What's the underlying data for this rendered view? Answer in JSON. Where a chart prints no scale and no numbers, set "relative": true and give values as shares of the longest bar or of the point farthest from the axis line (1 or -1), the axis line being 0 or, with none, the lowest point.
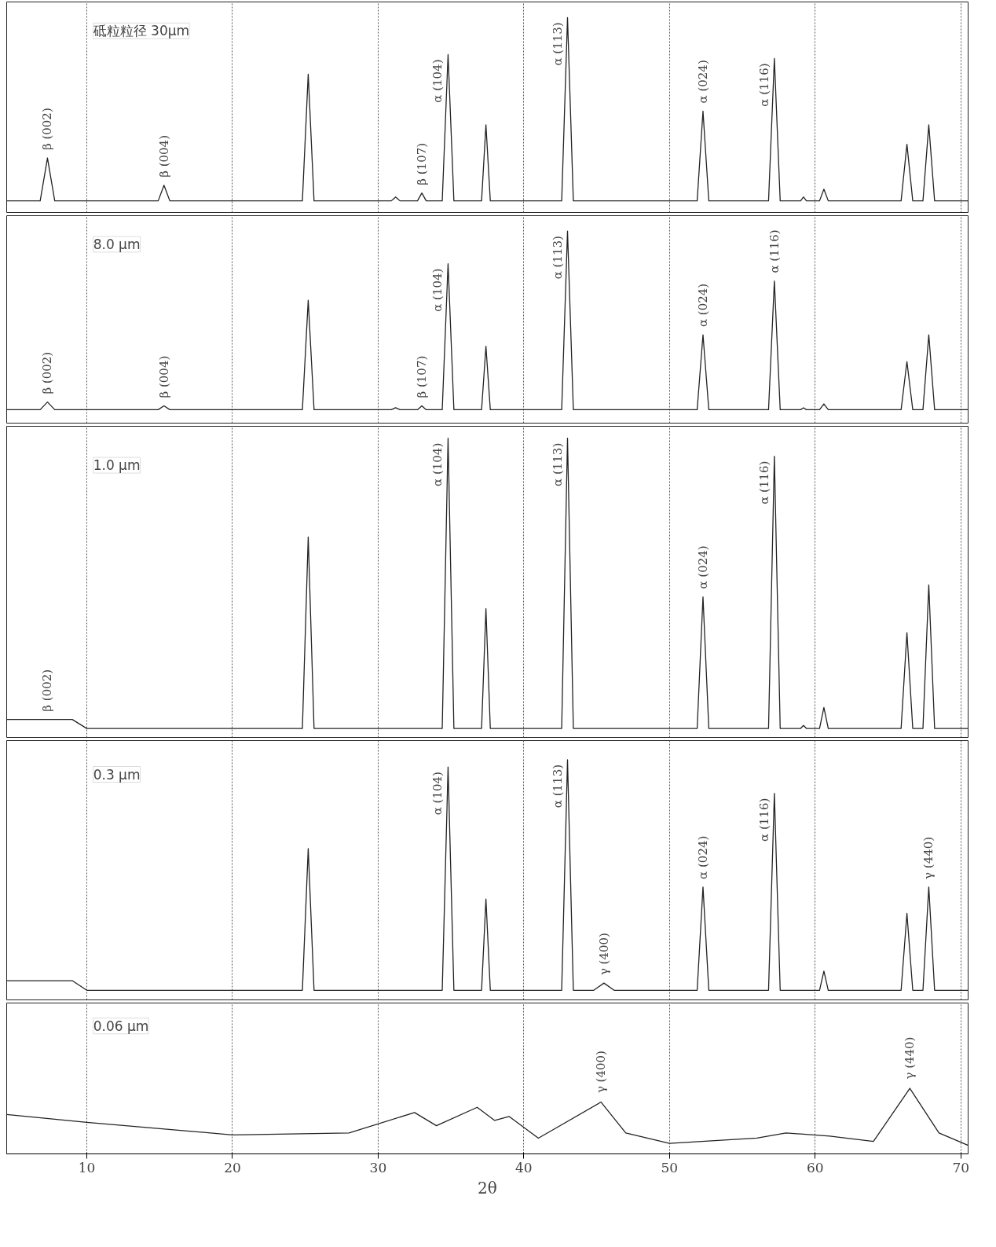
{
  "chart_data": [
    {
      "type": "line",
      "title": "砥粒粒径 30μm",
      "relative": true,
      "xlim": [
        4.5,
        70.5
      ],
      "xticks": [
        10,
        20,
        30,
        40,
        50,
        60,
        70
      ],
      "tick_labels": false,
      "grid": "x",
      "x": [
        4.5,
        6.8,
        7.3,
        7.8,
        14.9,
        15.3,
        15.7,
        24.8,
        25.2,
        25.6,
        30.9,
        31.2,
        31.5,
        32.7,
        33.0,
        33.3,
        34.4,
        34.8,
        35.2,
        37.1,
        37.4,
        37.7,
        42.6,
        43.0,
        43.4,
        51.9,
        52.3,
        52.7,
        56.8,
        57.2,
        57.6,
        59.0,
        59.2,
        59.4,
        60.3,
        60.6,
        60.9,
        65.9,
        66.3,
        66.7,
        67.4,
        67.8,
        68.2,
        70.5
      ],
      "series": [
        {
          "color": "#222222",
          "values": [
            0.06,
            0.06,
            0.28,
            0.06,
            0.06,
            0.14,
            0.06,
            0.06,
            0.71,
            0.06,
            0.06,
            0.08,
            0.06,
            0.06,
            0.1,
            0.06,
            0.06,
            0.81,
            0.06,
            0.06,
            0.45,
            0.06,
            0.06,
            1,
            0.06,
            0.06,
            0.52,
            0.06,
            0.06,
            0.79,
            0.06,
            0.06,
            0.08,
            0.06,
            0.06,
            0.12,
            0.06,
            0.06,
            0.35,
            0.06,
            0.06,
            0.45,
            0.06,
            0.06
          ]
        }
      ],
      "annotations": [
        {
          "text": "β (002)",
          "x": 7.3,
          "y": 0.28
        },
        {
          "text": "β (004)",
          "x": 15.3,
          "y": 0.14
        },
        {
          "text": "β (107)",
          "x": 33.0,
          "y": 0.1
        },
        {
          "text": "α (104)",
          "x": 34.8,
          "y": 0.81
        },
        {
          "text": "α (113)",
          "x": 43.0,
          "y": 1
        },
        {
          "text": "α (024)",
          "x": 52.3,
          "y": 0.52
        },
        {
          "text": "α (116)",
          "x": 57.2,
          "y": 0.79
        }
      ]
    },
    {
      "type": "line",
      "title": "8.0 μm",
      "relative": true,
      "xlim": [
        4.5,
        70.5
      ],
      "xticks": [
        10,
        20,
        30,
        40,
        50,
        60,
        70
      ],
      "tick_labels": false,
      "grid": "x",
      "x": [
        4.5,
        6.8,
        7.3,
        7.8,
        14.9,
        15.3,
        15.7,
        24.8,
        25.2,
        25.6,
        30.9,
        31.2,
        31.5,
        32.7,
        33.0,
        33.3,
        34.4,
        34.8,
        35.2,
        37.1,
        37.4,
        37.7,
        42.6,
        43.0,
        43.4,
        51.9,
        52.3,
        52.7,
        56.8,
        57.2,
        57.6,
        59.0,
        59.2,
        59.4,
        60.3,
        60.6,
        60.9,
        65.9,
        66.3,
        66.7,
        67.4,
        67.8,
        68.2,
        70.5
      ],
      "series": [
        {
          "color": "#222222",
          "values": [
            0.07,
            0.07,
            0.11,
            0.07,
            0.07,
            0.09,
            0.07,
            0.07,
            0.64,
            0.07,
            0.07,
            0.08,
            0.07,
            0.07,
            0.09,
            0.07,
            0.07,
            0.83,
            0.07,
            0.07,
            0.4,
            0.07,
            0.07,
            1,
            0.07,
            0.07,
            0.46,
            0.07,
            0.07,
            0.74,
            0.07,
            0.07,
            0.08,
            0.07,
            0.07,
            0.1,
            0.07,
            0.07,
            0.32,
            0.07,
            0.07,
            0.46,
            0.07,
            0.07
          ]
        }
      ],
      "annotations": [
        {
          "text": "β (002)",
          "x": 7.3,
          "y": 0.11
        },
        {
          "text": "β (004)",
          "x": 15.3,
          "y": 0.09
        },
        {
          "text": "β (107)",
          "x": 33.0,
          "y": 0.09
        },
        {
          "text": "α (104)",
          "x": 34.8,
          "y": 0.83
        },
        {
          "text": "α (113)",
          "x": 43.0,
          "y": 1
        },
        {
          "text": "α (024)",
          "x": 52.3,
          "y": 0.46
        },
        {
          "text": "α (116)",
          "x": 57.2,
          "y": 0.74
        }
      ]
    },
    {
      "type": "line",
      "title": "1.0 μm",
      "relative": true,
      "xlim": [
        4.5,
        70.5
      ],
      "xticks": [
        10,
        20,
        30,
        40,
        50,
        60,
        70
      ],
      "tick_labels": false,
      "grid": "x",
      "x": [
        4.5,
        9,
        10,
        24.8,
        25.2,
        25.6,
        34.4,
        34.8,
        35.2,
        37.1,
        37.4,
        37.7,
        42.6,
        43.0,
        43.4,
        51.9,
        52.3,
        52.7,
        56.8,
        57.2,
        57.6,
        59.0,
        59.2,
        59.4,
        60.3,
        60.6,
        60.9,
        65.9,
        66.3,
        66.7,
        67.4,
        67.8,
        68.2,
        70.5
      ],
      "series": [
        {
          "color": "#222222",
          "values": [
            0.06,
            0.06,
            0.03,
            0.03,
            0.67,
            0.03,
            0.03,
            1,
            0.03,
            0.03,
            0.43,
            0.03,
            0.03,
            1,
            0.03,
            0.03,
            0.47,
            0.03,
            0.03,
            0.94,
            0.03,
            0.03,
            0.04,
            0.03,
            0.03,
            0.1,
            0.03,
            0.03,
            0.35,
            0.03,
            0.03,
            0.51,
            0.03,
            0.03
          ]
        }
      ],
      "annotations": [
        {
          "text": "β (002)",
          "x": 7.3,
          "y": 0.06
        },
        {
          "text": "α (104)",
          "x": 34.8,
          "y": 1
        },
        {
          "text": "α (113)",
          "x": 43.0,
          "y": 1
        },
        {
          "text": "α (024)",
          "x": 52.3,
          "y": 0.47
        },
        {
          "text": "α (116)",
          "x": 57.2,
          "y": 0.94
        }
      ]
    },
    {
      "type": "line",
      "title": "0.3 μm",
      "relative": true,
      "xlim": [
        4.5,
        70.5
      ],
      "xticks": [
        10,
        20,
        30,
        40,
        50,
        60,
        70
      ],
      "tick_labels": false,
      "grid": "x",
      "x": [
        4.5,
        9,
        10,
        24.8,
        25.2,
        25.6,
        34.4,
        34.8,
        35.2,
        37.1,
        37.4,
        37.7,
        42.6,
        43.0,
        43.4,
        44.8,
        45.5,
        46.2,
        51.9,
        52.3,
        52.7,
        56.8,
        57.2,
        57.6,
        60.3,
        60.6,
        60.9,
        65.9,
        66.3,
        66.7,
        67.4,
        67.8,
        68.2,
        70.5
      ],
      "series": [
        {
          "color": "#222222",
          "values": [
            0.08,
            0.08,
            0.04,
            0.04,
            0.63,
            0.04,
            0.04,
            0.97,
            0.04,
            0.04,
            0.42,
            0.04,
            0.04,
            1,
            0.04,
            0.04,
            0.07,
            0.04,
            0.04,
            0.47,
            0.04,
            0.04,
            0.86,
            0.04,
            0.04,
            0.12,
            0.04,
            0.04,
            0.36,
            0.04,
            0.04,
            0.47,
            0.04,
            0.04
          ]
        }
      ],
      "annotations": [
        {
          "text": "α (104)",
          "x": 34.8,
          "y": 0.97
        },
        {
          "text": "α (113)",
          "x": 43.0,
          "y": 1
        },
        {
          "text": "γ (400)",
          "x": 45.5,
          "y": 0.07
        },
        {
          "text": "α (024)",
          "x": 52.3,
          "y": 0.47
        },
        {
          "text": "α (116)",
          "x": 57.2,
          "y": 0.86
        },
        {
          "text": "γ (440)",
          "x": 67.8,
          "y": 0.47
        }
      ]
    },
    {
      "type": "line",
      "title": "0.06 μm",
      "relative": true,
      "xlim": [
        4.5,
        70.5
      ],
      "xticks": [
        10,
        20,
        30,
        40,
        50,
        60,
        70
      ],
      "tick_labels": "x",
      "grid": "x",
      "xlabel": "2θ",
      "x": [
        4.5,
        10,
        20,
        28,
        32.5,
        34,
        36.8,
        38,
        39,
        41,
        45.3,
        47,
        50,
        56,
        58,
        61,
        64,
        66.5,
        68.5,
        70.5
      ],
      "series": [
        {
          "color": "#222222",
          "values": [
            0.6,
            0.48,
            0.29,
            0.32,
            0.63,
            0.43,
            0.71,
            0.51,
            0.57,
            0.24,
            0.79,
            0.32,
            0.16,
            0.24,
            0.32,
            0.27,
            0.19,
            1,
            0.32,
            0.13
          ]
        }
      ],
      "annotations": [
        {
          "text": "γ (400)",
          "x": 45.3,
          "y": 0.79
        },
        {
          "text": "γ (440)",
          "x": 66.5,
          "y": 1
        }
      ]
    }
  ]
}
